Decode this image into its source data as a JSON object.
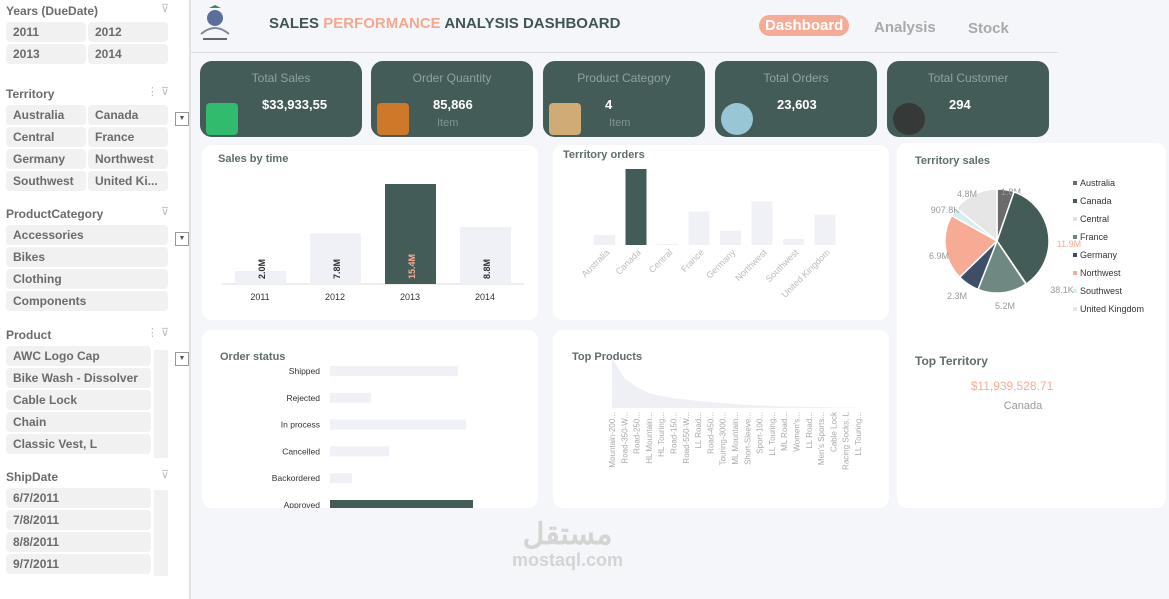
{
  "slicers": {
    "years": {
      "title": "Years (DueDate)",
      "items": [
        "2011",
        "2012",
        "2013",
        "2014"
      ]
    },
    "territory": {
      "title": "Territory",
      "items": [
        "Australia",
        "Canada",
        "Central",
        "France",
        "Germany",
        "Northwest",
        "Southwest",
        "United Ki..."
      ]
    },
    "category": {
      "title": "ProductCategory",
      "items": [
        "Accessories",
        "Bikes",
        "Clothing",
        "Components"
      ]
    },
    "product": {
      "title": "Product",
      "items": [
        "AWC Logo Cap",
        "Bike Wash - Dissolver",
        "Cable Lock",
        "Chain",
        "Classic Vest, L"
      ]
    },
    "shipdate": {
      "title": "ShipDate",
      "items": [
        "6/7/2011",
        "7/8/2011",
        "8/8/2011",
        "9/7/2011"
      ]
    }
  },
  "header": {
    "title_a": "SALES ",
    "title_b": "PERFORMANCE",
    "title_c": " ANALYSIS DASHBOARD",
    "nav": [
      "Dashboard",
      "Analysis",
      "Stock"
    ]
  },
  "kpis": [
    {
      "label": "Total Sales",
      "value": "$33,933,55",
      "sub": "",
      "icon": "money-icon"
    },
    {
      "label": "Order Quantity",
      "value": "85,866",
      "sub": "Item",
      "icon": "boxes-icon"
    },
    {
      "label": "Product Category",
      "value": "4",
      "sub": "Item",
      "icon": "crate-icon"
    },
    {
      "label": "Total Orders",
      "value": "23,603",
      "sub": "",
      "icon": "orders-icon"
    },
    {
      "label": "Total Customer",
      "value": "294",
      "sub": "",
      "icon": "customers-icon"
    }
  ],
  "colors": {
    "dark": "#445c58",
    "accent": "#f8ab94",
    "light": "#f0f1f7"
  },
  "chart_data": [
    {
      "id": "sales_by_time",
      "type": "bar",
      "title": "Sales by time",
      "categories": [
        "2011",
        "2012",
        "2013",
        "2014"
      ],
      "values": [
        2.0,
        7.8,
        15.4,
        8.8
      ],
      "labels": [
        "2.0M",
        "7.8M",
        "15.4M",
        "8.8M"
      ],
      "highlight": "2013"
    },
    {
      "id": "territory_orders",
      "type": "bar",
      "title": "Territory orders",
      "categories": [
        "Australia",
        "Canada",
        "Central",
        "France",
        "Germany",
        "Northwest",
        "Southwest",
        "United Kingdom"
      ],
      "values": [
        10,
        75,
        1,
        33,
        14,
        43,
        6,
        30
      ],
      "highlight": "Canada"
    },
    {
      "id": "territory_sales",
      "type": "pie",
      "title": "Territory sales",
      "categories": [
        "Australia",
        "Canada",
        "Central",
        "France",
        "Germany",
        "Northwest",
        "Southwest",
        "United Kingdom"
      ],
      "values": [
        1.8,
        11.9,
        0.0381,
        5.2,
        2.3,
        6.9,
        0.9078,
        4.8
      ],
      "labels": [
        "1.8M",
        "11.9M",
        "38.1K",
        "5.2M",
        "2.3M",
        "6.9M",
        "907.8K",
        "4.8M"
      ],
      "colors": [
        "#6b6b6b",
        "#445c58",
        "#eef0f6",
        "#6f8882",
        "#3e4e66",
        "#f8ab94",
        "#d7eef0",
        "#e6e6e6"
      ],
      "legend": "right"
    },
    {
      "id": "order_status",
      "type": "bar",
      "orientation": "horizontal",
      "title": "Order status",
      "categories": [
        "Shipped",
        "Rejected",
        "In process",
        "Cancelled",
        "Backordered",
        "Approved"
      ],
      "values": [
        128,
        41,
        136,
        59,
        22,
        143
      ],
      "highlight": "Approved"
    },
    {
      "id": "top_products",
      "type": "area",
      "title": "Top Products",
      "categories": [
        "Mountain-200...",
        "Road-350-W...",
        "Road-250...",
        "HL Mountain...",
        "HL Touring...",
        "Road-150...",
        "Road-550-W...",
        "LL Road...",
        "Road-450...",
        "Touring-3000...",
        "ML Mountain...",
        "Short-Sleeve...",
        "Sport-100...",
        "LL Touring...",
        "ML Road...",
        "Women's...",
        "LL Road...",
        "Men's Sports...",
        "Cable Lock",
        "Racing Socks, L",
        "LL Touring..."
      ],
      "values": [
        100,
        60,
        42,
        30,
        24,
        20,
        17,
        14,
        12,
        10,
        8,
        6,
        5,
        4,
        3,
        3,
        2,
        2,
        1,
        1,
        1
      ]
    }
  ],
  "top_territory": {
    "title": "Top Territory",
    "value": "$11,939,528.71",
    "name": "Canada"
  },
  "watermark": {
    "arabic": "مستقل",
    "latin": "mostaql.com"
  }
}
